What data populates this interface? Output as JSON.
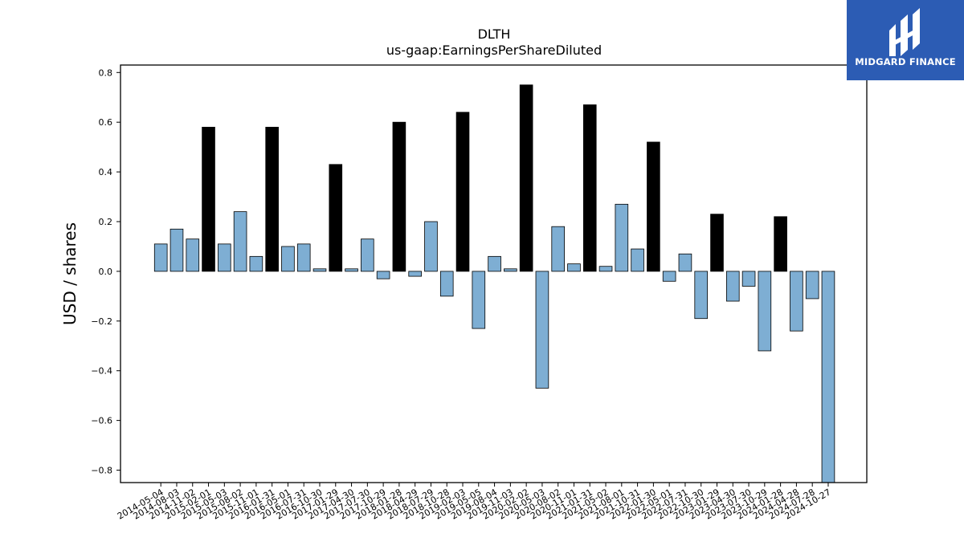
{
  "chart_data": {
    "type": "bar",
    "title": "DLTH",
    "subtitle": "us-gaap:EarningsPerShareDiluted",
    "xlabel": "",
    "ylabel": "USD / shares",
    "ylim": [
      -0.85,
      0.83
    ],
    "yticks": [
      0.8,
      0.6,
      0.4,
      0.2,
      0.0,
      -0.2,
      -0.4,
      -0.6,
      -0.8
    ],
    "ytick_labels": [
      "0.8",
      "0.6",
      "0.4",
      "0.2",
      "0.0",
      "−0.2",
      "−0.4",
      "−0.6",
      "−0.8"
    ],
    "grid": false,
    "categories": [
      "2014-05-04",
      "2014-08-03",
      "2014-11-02",
      "2015-02-01",
      "2015-05-03",
      "2015-08-02",
      "2015-11-01",
      "2016-01-31",
      "2016-05-01",
      "2016-07-31",
      "2016-10-30",
      "2017-01-29",
      "2017-04-30",
      "2017-07-30",
      "2017-10-29",
      "2018-01-28",
      "2018-04-29",
      "2018-07-29",
      "2018-10-28",
      "2019-02-03",
      "2019-05-05",
      "2019-08-04",
      "2019-11-03",
      "2020-02-02",
      "2020-05-03",
      "2020-08-02",
      "2020-11-01",
      "2021-01-31",
      "2021-05-02",
      "2021-08-01",
      "2021-10-31",
      "2022-01-30",
      "2022-05-01",
      "2022-07-31",
      "2022-10-30",
      "2023-01-29",
      "2023-04-30",
      "2023-07-30",
      "2023-10-29",
      "2024-01-28",
      "2024-04-28",
      "2024-07-28",
      "2024-10-27"
    ],
    "values": [
      0.11,
      0.17,
      0.13,
      0.58,
      0.11,
      0.24,
      0.06,
      0.58,
      0.1,
      0.11,
      0.01,
      0.43,
      0.01,
      0.13,
      -0.03,
      0.6,
      -0.02,
      0.2,
      -0.1,
      0.64,
      -0.23,
      0.06,
      0.01,
      0.75,
      -0.47,
      0.18,
      0.03,
      0.67,
      0.02,
      0.27,
      0.09,
      0.52,
      -0.04,
      0.07,
      -0.19,
      0.23,
      -0.12,
      -0.06,
      -0.32,
      0.22,
      -0.24,
      -0.11,
      -0.85
    ],
    "highlight": [
      false,
      false,
      false,
      true,
      false,
      false,
      false,
      true,
      false,
      false,
      false,
      true,
      false,
      false,
      false,
      true,
      false,
      false,
      false,
      true,
      false,
      false,
      false,
      true,
      false,
      false,
      false,
      true,
      false,
      false,
      false,
      true,
      false,
      false,
      false,
      true,
      false,
      false,
      false,
      true,
      false,
      false,
      false
    ],
    "colors": {
      "normal": "#7eaed3",
      "highlight": "#000000",
      "edge": "#000000"
    }
  },
  "logo": {
    "text": "MIDGARD FINANCE",
    "background": "#2c5cb4"
  }
}
